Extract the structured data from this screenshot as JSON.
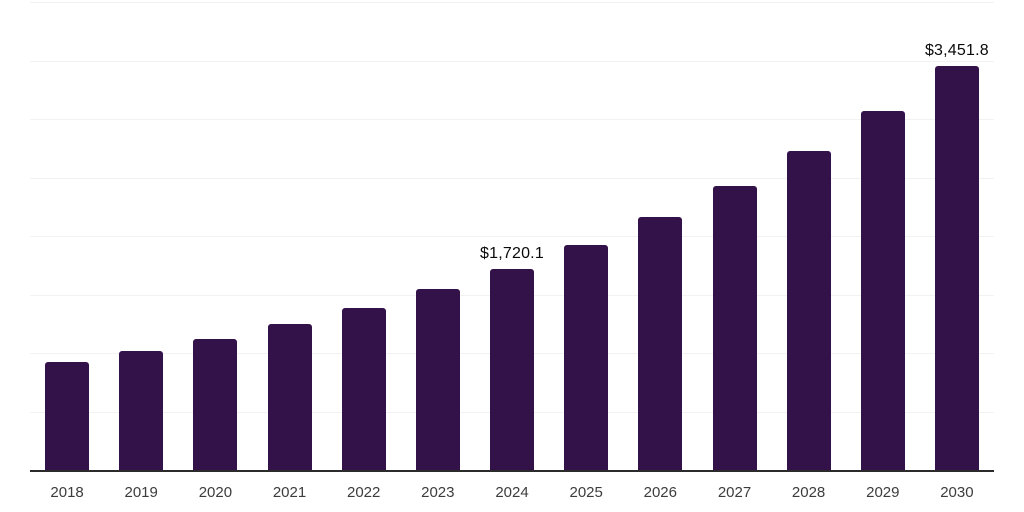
{
  "chart_data": {
    "type": "bar",
    "title": "",
    "xlabel": "",
    "ylabel": "",
    "categories": [
      "2018",
      "2019",
      "2020",
      "2021",
      "2022",
      "2023",
      "2024",
      "2025",
      "2026",
      "2027",
      "2028",
      "2029",
      "2030"
    ],
    "values": [
      920,
      1020,
      1117,
      1250,
      1382,
      1545,
      1720.1,
      1926,
      2163,
      2427,
      2727,
      3068,
      3451.8
    ],
    "data_labels": {
      "2024": "$1,720.1",
      "2030": "$3,451.8"
    },
    "ylim": [
      0,
      4000
    ],
    "gridline_step": 500,
    "grid": "horizontal",
    "legend": "none",
    "colors": {
      "bar": "#331149",
      "gridline": "#f2f2f2",
      "axis_line": "#2b2b2b",
      "tick_label": "#3c3c3c",
      "data_label": "#0a0a0a",
      "background": "#ffffff"
    }
  }
}
